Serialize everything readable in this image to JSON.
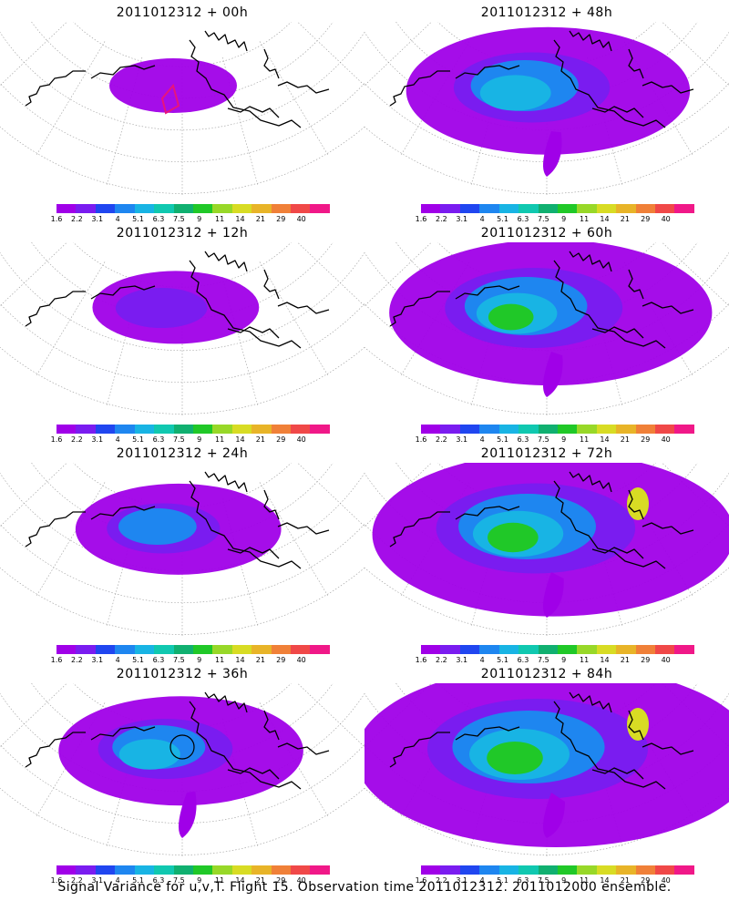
{
  "caption": "Signal Variance for u,v,T. Flight 15. Observation time 2011012312. 2011012000 ensemble.",
  "legend": {
    "ticks": [
      "1.6",
      "2.2",
      "3.1",
      "4",
      "5.1",
      "6.3",
      "7.5",
      "9",
      "11",
      "14",
      "21",
      "29",
      "40"
    ],
    "colors": [
      "#a000e8",
      "#7a1cf0",
      "#2046f0",
      "#1e86f0",
      "#18b4e4",
      "#10c8b0",
      "#10b070",
      "#20c828",
      "#98d828",
      "#d8dc24",
      "#e8b428",
      "#f08038",
      "#f04848",
      "#f01888"
    ]
  },
  "panels": [
    {
      "title": "2011012312 + 00h",
      "intensity": 0
    },
    {
      "title": "2011012312 + 12h",
      "intensity": 1
    },
    {
      "title": "2011012312 + 24h",
      "intensity": 2
    },
    {
      "title": "2011012312 + 36h",
      "intensity": 3
    },
    {
      "title": "2011012312 + 48h",
      "intensity": 4
    },
    {
      "title": "2011012312 + 60h",
      "intensity": 5
    },
    {
      "title": "2011012312 + 72h",
      "intensity": 6
    },
    {
      "title": "2011012312 + 84h",
      "intensity": 7
    }
  ]
}
